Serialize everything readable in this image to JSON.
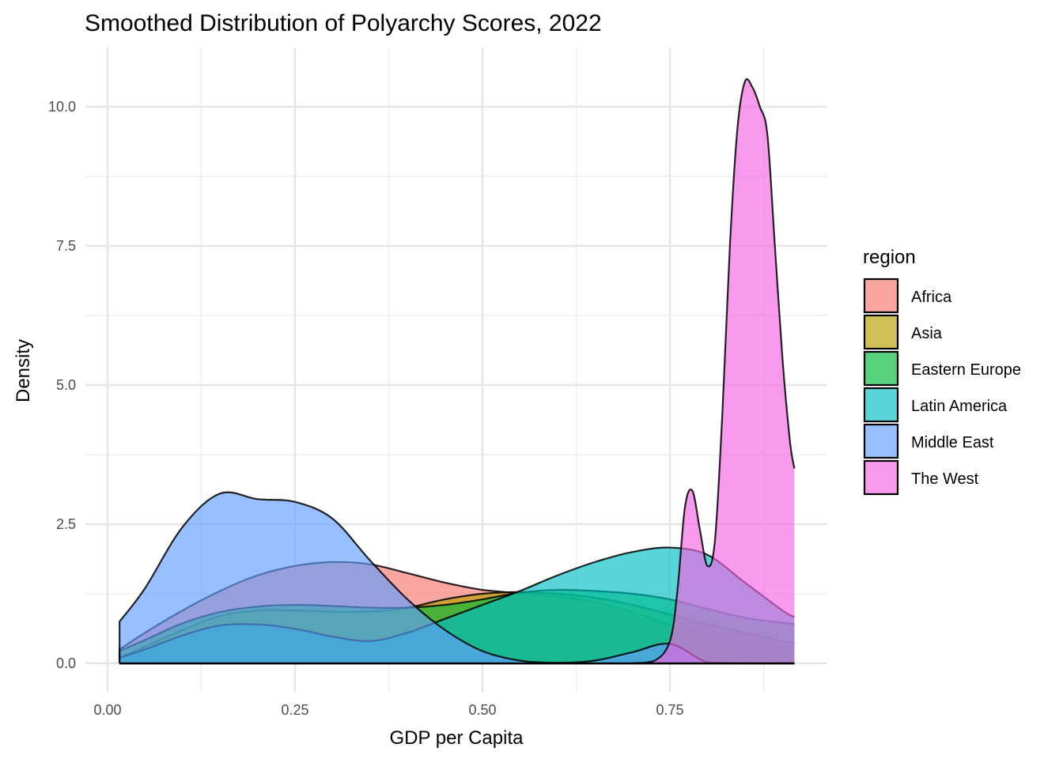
{
  "chart_data": {
    "type": "area",
    "title": "Smoothed Distribution of Polyarchy Scores, 2022",
    "xlabel": "GDP per Capita",
    "ylabel": "Density",
    "xlim": [
      -0.03,
      0.96
    ],
    "ylim": [
      -0.5,
      11.0
    ],
    "x_ticks": [
      0.0,
      0.25,
      0.5,
      0.75
    ],
    "x_tick_labels": [
      "0.00",
      "0.25",
      "0.50",
      "0.75"
    ],
    "y_ticks": [
      0.0,
      2.5,
      5.0,
      7.5,
      10.0
    ],
    "y_tick_labels": [
      "0.0",
      "2.5",
      "5.0",
      "7.5",
      "10.0"
    ],
    "grid": true,
    "legend": {
      "title": "region",
      "placement": "right"
    },
    "x": [
      0.016,
      0.05,
      0.1,
      0.15,
      0.2,
      0.25,
      0.3,
      0.35,
      0.4,
      0.45,
      0.5,
      0.55,
      0.6,
      0.65,
      0.7,
      0.75,
      0.8,
      0.85,
      0.9,
      0.916
    ],
    "series": [
      {
        "name": "Africa",
        "color": "#F8766D",
        "values": [
          0.25,
          0.55,
          0.95,
          1.3,
          1.58,
          1.75,
          1.82,
          1.78,
          1.62,
          1.45,
          1.32,
          1.26,
          1.2,
          1.1,
          0.92,
          0.68,
          0.4,
          0.15,
          0.04,
          0.02
        ]
      },
      {
        "name": "Asia",
        "color": "#B79F00",
        "values": [
          0.1,
          0.3,
          0.6,
          0.85,
          0.95,
          0.95,
          0.93,
          0.93,
          1.0,
          1.15,
          1.25,
          1.28,
          1.25,
          1.18,
          1.05,
          0.88,
          0.7,
          0.55,
          0.4,
          0.37
        ]
      },
      {
        "name": "Eastern Europe",
        "color": "#00BA38",
        "values": [
          0.22,
          0.42,
          0.72,
          0.92,
          1.02,
          1.05,
          1.03,
          1.0,
          1.0,
          1.05,
          1.15,
          1.27,
          1.32,
          1.3,
          1.25,
          1.15,
          0.98,
          0.82,
          0.73,
          0.71
        ]
      },
      {
        "name": "Latin America",
        "color": "#00BFC4",
        "values": [
          0.1,
          0.25,
          0.5,
          0.68,
          0.7,
          0.62,
          0.48,
          0.4,
          0.55,
          0.8,
          1.05,
          1.3,
          1.58,
          1.82,
          2.0,
          2.08,
          1.95,
          1.45,
          0.95,
          0.83
        ]
      },
      {
        "name": "Middle East",
        "color": "#619CFF",
        "values": [
          0.75,
          1.35,
          2.45,
          3.05,
          2.95,
          2.9,
          2.6,
          1.85,
          1.15,
          0.6,
          0.22,
          0.05,
          0.01,
          0.05,
          0.2,
          0.35,
          0.02,
          0.0,
          0.0,
          0.0
        ]
      },
      {
        "name": "The West",
        "color": "#F564E3",
        "x": [
          0.7,
          0.73,
          0.75,
          0.76,
          0.77,
          0.78,
          0.79,
          0.8,
          0.81,
          0.82,
          0.83,
          0.84,
          0.85,
          0.86,
          0.87,
          0.88,
          0.89,
          0.9,
          0.91,
          0.916
        ],
        "values": [
          0.0,
          0.05,
          0.4,
          1.3,
          2.8,
          3.1,
          2.4,
          1.75,
          2.2,
          4.5,
          7.5,
          9.6,
          10.45,
          10.35,
          10.0,
          9.5,
          7.5,
          5.5,
          4.0,
          3.5
        ]
      }
    ]
  }
}
